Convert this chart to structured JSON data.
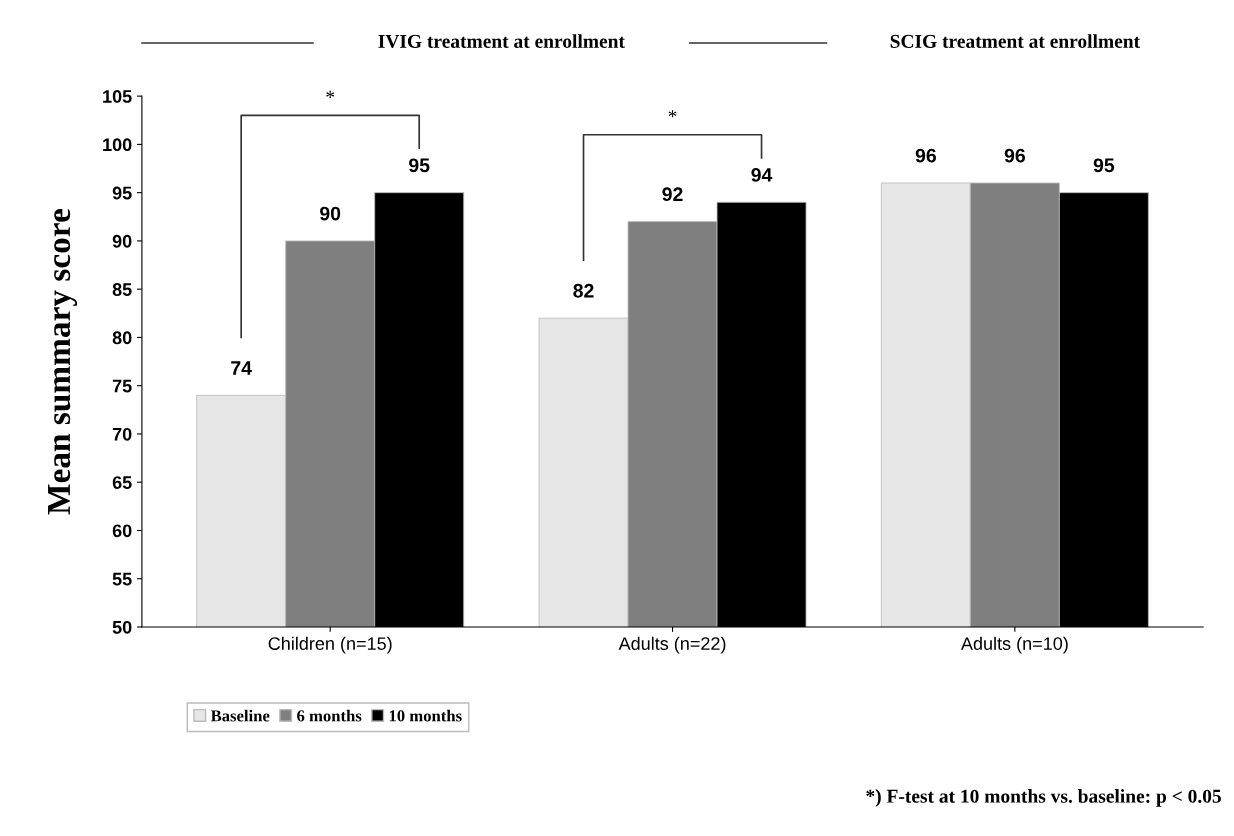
{
  "chart_data": {
    "type": "bar",
    "ylabel": "Mean summary score",
    "categories": [
      "Children (n=15)",
      "Adults (n=22)",
      "Adults (n=10)"
    ],
    "series": [
      {
        "name": "Baseline",
        "color": "#e6e6e6",
        "values": [
          74,
          82,
          96
        ]
      },
      {
        "name": "6 months",
        "color": "#7f7f7f",
        "values": [
          90,
          92,
          96
        ]
      },
      {
        "name": "10 months",
        "color": "#000000",
        "values": [
          95,
          94,
          95
        ]
      }
    ],
    "ylim": [
      50,
      105
    ],
    "yticks": [
      50,
      55,
      60,
      65,
      70,
      75,
      80,
      85,
      90,
      95,
      100,
      105
    ],
    "data_labels": true,
    "legend": "bottom left",
    "grid": false,
    "annotations": [
      "IVIG treatment at enrollment",
      "SCIG treatment at enrollment",
      "*",
      "*",
      "*) F-test at 10 months vs. baseline: p < 0.05"
    ]
  }
}
